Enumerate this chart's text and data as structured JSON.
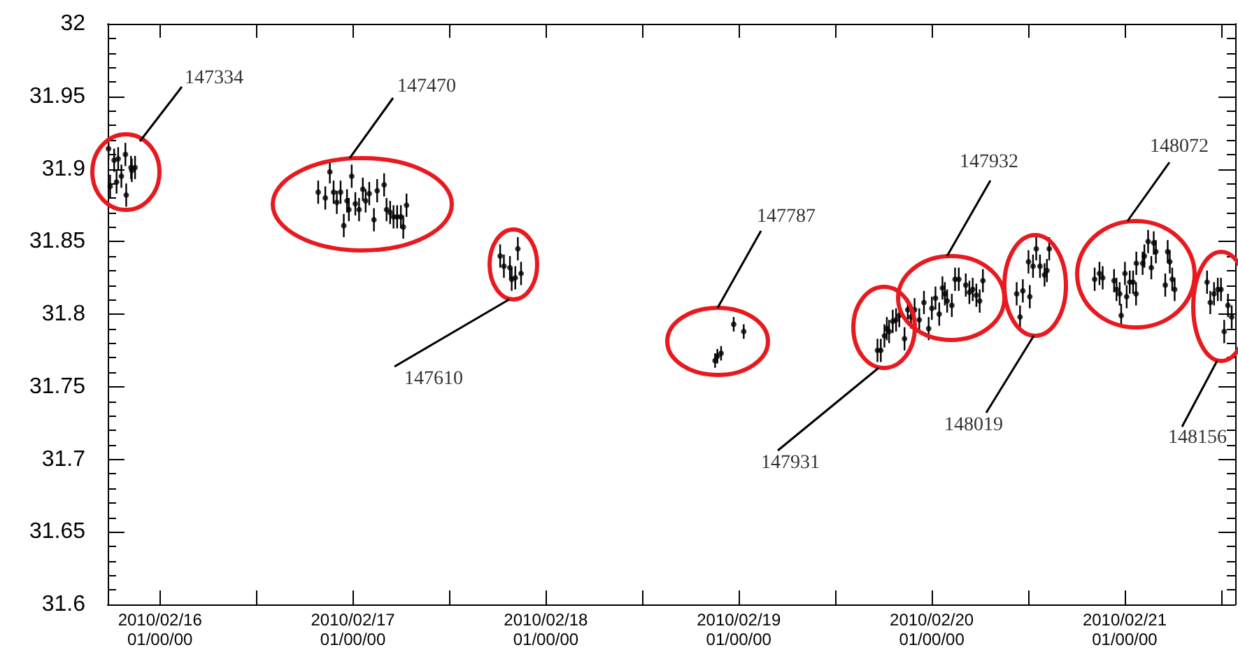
{
  "chart_data": {
    "type": "scatter",
    "marker": "circle",
    "grid": false,
    "xlim": [
      "2010-02-15T17:30",
      "2010-02-21T13:45"
    ],
    "xticks": [
      {
        "value": "2010-02-16",
        "label": "2010/02/16\n01/00/00"
      },
      {
        "value": "2010-02-16T12:00",
        "label": null
      },
      {
        "value": "2010-02-17",
        "label": "2010/02/17\n01/00/00"
      },
      {
        "value": "2010-02-17T12:00",
        "label": null
      },
      {
        "value": "2010-02-18",
        "label": "2010/02/18\n01/00/00"
      },
      {
        "value": "2010-02-18T12:00",
        "label": null
      },
      {
        "value": "2010-02-19",
        "label": "2010/02/19\n01/00/00"
      },
      {
        "value": "2010-02-19T12:00",
        "label": null
      },
      {
        "value": "2010-02-20",
        "label": "2010/02/20\n01/00/00"
      },
      {
        "value": "2010-02-20T12:00",
        "label": null
      },
      {
        "value": "2010-02-21",
        "label": "2010/02/21\n01/00/00"
      },
      {
        "value": "2010-02-21T12:00",
        "label": null
      }
    ],
    "ylim": [
      31.6,
      32
    ],
    "yticks": [
      31.6,
      31.65,
      31.7,
      31.75,
      31.8,
      31.85,
      31.9,
      31.95,
      32
    ],
    "annotations": [
      "147334",
      "147470",
      "147610",
      "147787",
      "147931",
      "147932",
      "148019",
      "148072",
      "148156"
    ],
    "series": [
      {
        "color": "#000000",
        "x": [
          "2010-02-15T17:36",
          "2010-02-15T18:18",
          "2010-02-15T18:48",
          "2010-02-15T17:48",
          "2010-02-15T18:36",
          "2010-02-15T19:12",
          "2010-02-15T19:42",
          "2010-02-15T19:48",
          "2010-02-15T20:24",
          "2010-02-15T20:30",
          "2010-02-15T20:54",
          "2010-02-16T19:41",
          "2010-02-16T20:34",
          "2010-02-16T21:08",
          "2010-02-16T21:36",
          "2010-02-16T22:00",
          "2010-02-16T22:28",
          "2010-02-16T22:52",
          "2010-02-16T23:16",
          "2010-02-16T23:30",
          "2010-02-16T23:51",
          "2010-02-17T00:18",
          "2010-02-17T00:46",
          "2010-02-17T01:14",
          "2010-02-17T01:35",
          "2010-02-17T02:02",
          "2010-02-17T02:37",
          "2010-02-17T03:01",
          "2010-02-17T03:53",
          "2010-02-17T04:11",
          "2010-02-17T04:38",
          "2010-02-17T05:03",
          "2010-02-17T05:30",
          "2010-02-17T05:58",
          "2010-02-17T06:16",
          "2010-02-17T06:40",
          "2010-02-17T18:19",
          "2010-02-17T18:47",
          "2010-02-17T19:32",
          "2010-02-17T19:45",
          "2010-02-17T20:12",
          "2010-02-17T20:31",
          "2010-02-17T20:55",
          "2010-02-18T21:03",
          "2010-02-18T21:20",
          "2010-02-18T21:48",
          "2010-02-18T23:22",
          "2010-02-19T00:37",
          "2010-02-19T17:15",
          "2010-02-19T17:40",
          "2010-02-19T18:07",
          "2010-02-19T18:25",
          "2010-02-19T18:42",
          "2010-02-19T19:09",
          "2010-02-19T19:34",
          "2010-02-19T19:58",
          "2010-02-19T20:37",
          "2010-02-19T21:01",
          "2010-02-19T21:25",
          "2010-02-19T21:52",
          "2010-02-19T22:27",
          "2010-02-19T23:02",
          "2010-02-19T23:37",
          "2010-02-20T00:01",
          "2010-02-20T00:28",
          "2010-02-20T00:56",
          "2010-02-20T01:20",
          "2010-02-20T01:38",
          "2010-02-20T01:55",
          "2010-02-20T02:30",
          "2010-02-20T02:54",
          "2010-02-20T03:22",
          "2010-02-20T04:14",
          "2010-02-20T04:41",
          "2010-02-20T05:06",
          "2010-02-20T05:33",
          "2010-02-20T05:58",
          "2010-02-20T06:22",
          "2010-02-20T10:34",
          "2010-02-20T10:59",
          "2010-02-20T11:20",
          "2010-02-20T12:02",
          "2010-02-20T12:12",
          "2010-02-20T12:36",
          "2010-02-20T13:00",
          "2010-02-20T13:28",
          "2010-02-20T14:02",
          "2010-02-20T14:20",
          "2010-02-20T14:37",
          "2010-02-20T20:16",
          "2010-02-20T20:52",
          "2010-02-20T21:16",
          "2010-02-20T22:41",
          "2010-02-20T22:59",
          "2010-02-20T23:23",
          "2010-02-20T23:34",
          "2010-02-21T00:02",
          "2010-02-21T00:15",
          "2010-02-21T00:38",
          "2010-02-21T01:03",
          "2010-02-21T01:25",
          "2010-02-21T01:27",
          "2010-02-21T02:14",
          "2010-02-21T02:27",
          "2010-02-21T02:55",
          "2010-02-21T03:19",
          "2010-02-21T03:37",
          "2010-02-21T03:53",
          "2010-02-21T05:03",
          "2010-02-21T05:21",
          "2010-02-21T05:37",
          "2010-02-21T05:55",
          "2010-02-21T06:13",
          "2010-02-21T10:15",
          "2010-02-21T10:39",
          "2010-02-21T11:07",
          "2010-02-21T11:35",
          "2010-02-21T11:59",
          "2010-02-21T12:23",
          "2010-02-21T12:51",
          "2010-02-21T13:19"
        ],
        "values": [
          31.914,
          31.906,
          31.907,
          31.888,
          31.891,
          31.895,
          31.91,
          31.882,
          31.901,
          31.899,
          31.901,
          31.884,
          31.88,
          31.898,
          31.884,
          31.877,
          31.884,
          31.861,
          31.878,
          31.872,
          31.895,
          31.876,
          31.872,
          31.886,
          31.878,
          31.883,
          31.865,
          31.885,
          31.889,
          31.872,
          31.87,
          31.867,
          31.867,
          31.867,
          31.86,
          31.875,
          31.84,
          31.833,
          31.832,
          31.824,
          31.825,
          31.845,
          31.828,
          31.768,
          31.771,
          31.773,
          31.793,
          31.788,
          31.775,
          31.775,
          31.785,
          31.79,
          31.788,
          31.795,
          31.796,
          31.799,
          31.783,
          31.803,
          31.798,
          31.803,
          31.796,
          31.808,
          31.79,
          31.804,
          31.811,
          31.8,
          31.818,
          31.814,
          31.809,
          31.806,
          31.824,
          31.824,
          31.82,
          31.815,
          31.817,
          31.813,
          31.809,
          31.823,
          31.814,
          31.798,
          31.816,
          31.836,
          31.812,
          31.833,
          31.845,
          31.833,
          31.827,
          31.83,
          31.845,
          31.824,
          31.828,
          31.825,
          31.823,
          31.817,
          31.814,
          31.799,
          31.828,
          31.812,
          31.822,
          31.822,
          31.814,
          31.835,
          31.835,
          31.84,
          31.85,
          31.832,
          31.849,
          31.843,
          31.82,
          31.843,
          31.836,
          31.824,
          31.817,
          31.822,
          31.808,
          31.814,
          31.817,
          31.817,
          31.788,
          31.806,
          31.798
        ],
        "errors": [
          0.008,
          0.008,
          0.008,
          0.008,
          0.008,
          0.008,
          0.008,
          0.008,
          0.008,
          0.008,
          0.008,
          0.008,
          0.008,
          0.008,
          0.008,
          0.008,
          0.008,
          0.008,
          0.008,
          0.008,
          0.008,
          0.008,
          0.008,
          0.008,
          0.008,
          0.008,
          0.008,
          0.008,
          0.008,
          0.008,
          0.008,
          0.008,
          0.008,
          0.008,
          0.008,
          0.008,
          0.008,
          0.008,
          0.008,
          0.008,
          0.008,
          0.008,
          0.008,
          0.005,
          0.005,
          0.005,
          0.005,
          0.005,
          0.008,
          0.008,
          0.008,
          0.008,
          0.008,
          0.008,
          0.008,
          0.008,
          0.008,
          0.008,
          0.008,
          0.008,
          0.008,
          0.008,
          0.008,
          0.008,
          0.008,
          0.008,
          0.008,
          0.008,
          0.008,
          0.008,
          0.008,
          0.008,
          0.008,
          0.008,
          0.008,
          0.008,
          0.008,
          0.008,
          0.008,
          0.008,
          0.008,
          0.008,
          0.008,
          0.008,
          0.008,
          0.008,
          0.008,
          0.008,
          0.008,
          0.008,
          0.008,
          0.008,
          0.008,
          0.008,
          0.008,
          0.008,
          0.008,
          0.008,
          0.008,
          0.008,
          0.008,
          0.008,
          0.008,
          0.008,
          0.008,
          0.008,
          0.008,
          0.008,
          0.008,
          0.008,
          0.008,
          0.008,
          0.008,
          0.008,
          0.008,
          0.008,
          0.008,
          0.008,
          0.008,
          0.008,
          0.008
        ]
      }
    ]
  }
}
